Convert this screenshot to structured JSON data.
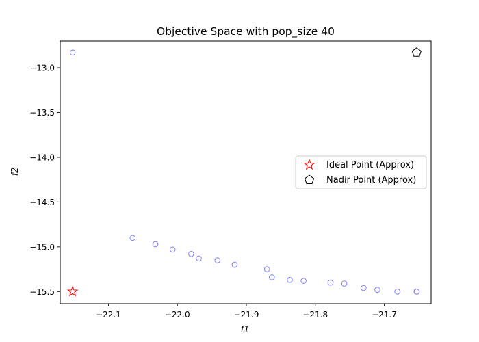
{
  "chart_data": {
    "type": "scatter",
    "title": "Objective Space with pop_size 40",
    "xlabel": "f1",
    "ylabel": "f2",
    "xlim": [
      -22.17,
      -21.632
    ],
    "ylim": [
      -15.635,
      -12.702
    ],
    "xticks": [
      -22.1,
      -22.0,
      -21.9,
      -21.8,
      -21.7
    ],
    "xtick_labels": [
      "−22.1",
      "−22.0",
      "−21.9",
      "−21.8",
      "−21.7"
    ],
    "yticks": [
      -15.5,
      -15.0,
      -14.5,
      -14.0,
      -13.5,
      -13.0
    ],
    "ytick_labels": [
      "−15.5",
      "−15.0",
      "−14.5",
      "−14.0",
      "−13.5",
      "−13.0"
    ],
    "grid": false,
    "legend_position": "center-right",
    "series": [
      {
        "marker": "circle-open",
        "color": "#8080ff",
        "points": [
          {
            "x": -22.152,
            "y": -12.83
          },
          {
            "x": -22.065,
            "y": -14.9
          },
          {
            "x": -22.032,
            "y": -14.97
          },
          {
            "x": -22.007,
            "y": -15.03
          },
          {
            "x": -21.98,
            "y": -15.08
          },
          {
            "x": -21.969,
            "y": -15.13
          },
          {
            "x": -21.942,
            "y": -15.15
          },
          {
            "x": -21.917,
            "y": -15.2
          },
          {
            "x": -21.87,
            "y": -15.25
          },
          {
            "x": -21.863,
            "y": -15.34
          },
          {
            "x": -21.837,
            "y": -15.37
          },
          {
            "x": -21.817,
            "y": -15.38
          },
          {
            "x": -21.778,
            "y": -15.4
          },
          {
            "x": -21.758,
            "y": -15.41
          },
          {
            "x": -21.73,
            "y": -15.46
          },
          {
            "x": -21.71,
            "y": -15.48
          },
          {
            "x": -21.681,
            "y": -15.5
          },
          {
            "x": -21.653,
            "y": -15.5
          },
          {
            "x": -21.653,
            "y": -15.5
          },
          {
            "x": -21.653,
            "y": -15.5
          }
        ]
      },
      {
        "name": "Ideal Point (Approx)",
        "marker": "star-open",
        "color": "#ff0000",
        "points": [
          {
            "x": -22.152,
            "y": -15.5
          }
        ]
      },
      {
        "name": "Nadir Point (Approx)",
        "marker": "pentagon-open",
        "color": "#000000",
        "points": [
          {
            "x": -21.653,
            "y": -12.83
          }
        ]
      }
    ]
  }
}
